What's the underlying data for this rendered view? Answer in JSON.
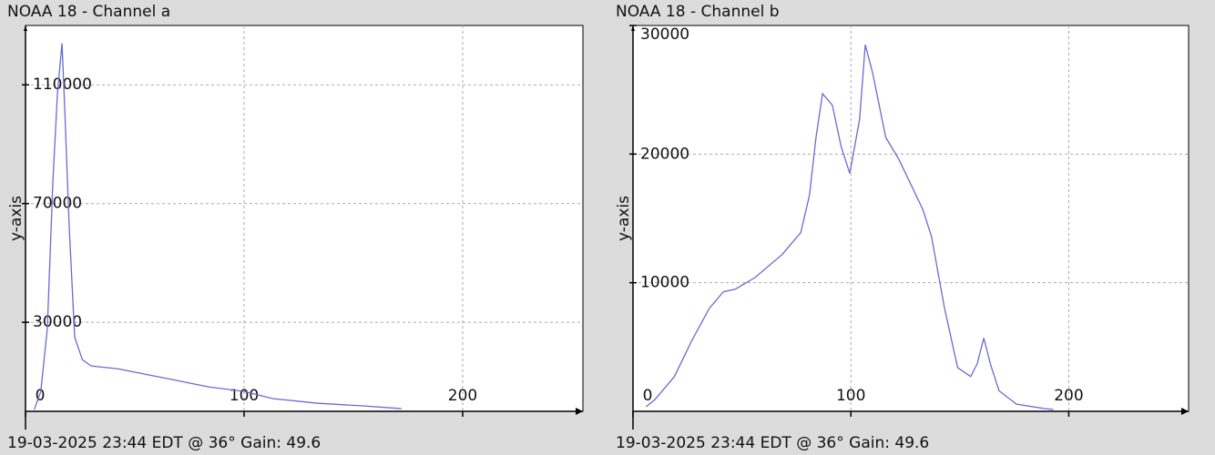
{
  "chart_data": [
    {
      "type": "line",
      "title": "NOAA 18 - Channel a",
      "footer": "19-03-2025 23:44 EDT @ 36° Gain: 49.6",
      "y_label": "y-axis",
      "x": [
        4,
        7,
        10,
        12.5,
        14.6,
        16.7,
        18,
        20,
        22.5,
        26,
        30,
        42.5,
        63,
        84,
        100,
        113,
        134,
        155,
        172
      ],
      "series": [
        {
          "name": "Channel a",
          "color": "#6a6ad0",
          "values": [
            600,
            6700,
            28000,
            77000,
            107000,
            124000,
            101000,
            62000,
            25000,
            17400,
            15300,
            14300,
            11300,
            8200,
            6700,
            4300,
            2700,
            1800,
            900
          ]
        }
      ],
      "xlim": [
        0,
        255
      ],
      "ylim": [
        0,
        130000
      ],
      "xticks": [
        0,
        100,
        200
      ],
      "yticks": [
        30000,
        70000,
        110000
      ],
      "grid": true
    },
    {
      "type": "line",
      "title": "NOAA 18 - Channel b",
      "footer": "19-03-2025 23:44 EDT @ 36° Gain: 49.6",
      "y_label": "y-axis",
      "x": [
        6,
        10,
        19,
        27,
        35,
        41.5,
        47,
        56,
        68.5,
        77,
        81,
        84,
        87,
        91.5,
        95.5,
        99.5,
        104,
        106.6,
        110,
        116,
        122,
        133,
        137,
        143,
        149,
        155,
        158,
        161,
        164,
        168,
        176,
        189,
        193
      ],
      "series": [
        {
          "name": "Channel b",
          "color": "#6a6ad0",
          "values": [
            350,
            900,
            2700,
            5500,
            8000,
            9300,
            9500,
            10400,
            12200,
            13900,
            16800,
            21300,
            24700,
            23800,
            20600,
            18500,
            22700,
            28500,
            26300,
            21300,
            19600,
            15700,
            13600,
            8000,
            3400,
            2700,
            3700,
            5700,
            3700,
            1600,
            560,
            210,
            140
          ]
        }
      ],
      "xlim": [
        0,
        255
      ],
      "ylim": [
        0,
        30000
      ],
      "xticks": [
        0,
        100,
        200
      ],
      "yticks": [
        10000,
        20000,
        30000
      ],
      "grid": true
    }
  ]
}
